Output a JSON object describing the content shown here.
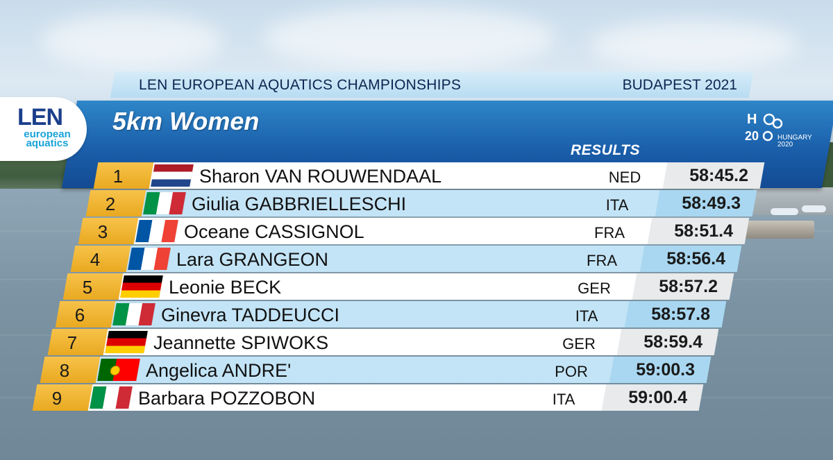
{
  "header": {
    "championship": "LEN EUROPEAN AQUATICS CHAMPIONSHIPS",
    "city_year": "BUDAPEST 2021"
  },
  "logo": {
    "brand": "LEN",
    "line1": "european",
    "line2": "aquatics"
  },
  "event": {
    "title": "5km Women",
    "results_label": "RESULTS"
  },
  "h2o_logo": {
    "text1": "HUNGARY",
    "text2": "2020"
  },
  "colors": {
    "band_blue": "#1b5fab",
    "rank_gold": "#f0b531",
    "row_light_blue": "#c3e4f6"
  },
  "results": [
    {
      "rank": "1",
      "name": "Sharon VAN ROUWENDAAL",
      "country": "NED",
      "time": "58:45.2",
      "flag": "netherlands-flag"
    },
    {
      "rank": "2",
      "name": "Giulia GABBRIELLESCHI",
      "country": "ITA",
      "time": "58:49.3",
      "flag": "italy-flag"
    },
    {
      "rank": "3",
      "name": "Oceane CASSIGNOL",
      "country": "FRA",
      "time": "58:51.4",
      "flag": "france-flag"
    },
    {
      "rank": "4",
      "name": "Lara GRANGEON",
      "country": "FRA",
      "time": "58:56.4",
      "flag": "france-flag"
    },
    {
      "rank": "5",
      "name": "Leonie BECK",
      "country": "GER",
      "time": "58:57.2",
      "flag": "germany-flag"
    },
    {
      "rank": "6",
      "name": "Ginevra TADDEUCCI",
      "country": "ITA",
      "time": "58:57.8",
      "flag": "italy-flag"
    },
    {
      "rank": "7",
      "name": "Jeannette SPIWOKS",
      "country": "GER",
      "time": "58:59.4",
      "flag": "germany-flag"
    },
    {
      "rank": "8",
      "name": "Angelica ANDRE'",
      "country": "POR",
      "time": "59:00.3",
      "flag": "portugal-flag"
    },
    {
      "rank": "9",
      "name": "Barbara POZZOBON",
      "country": "ITA",
      "time": "59:00.4",
      "flag": "italy-flag"
    }
  ]
}
